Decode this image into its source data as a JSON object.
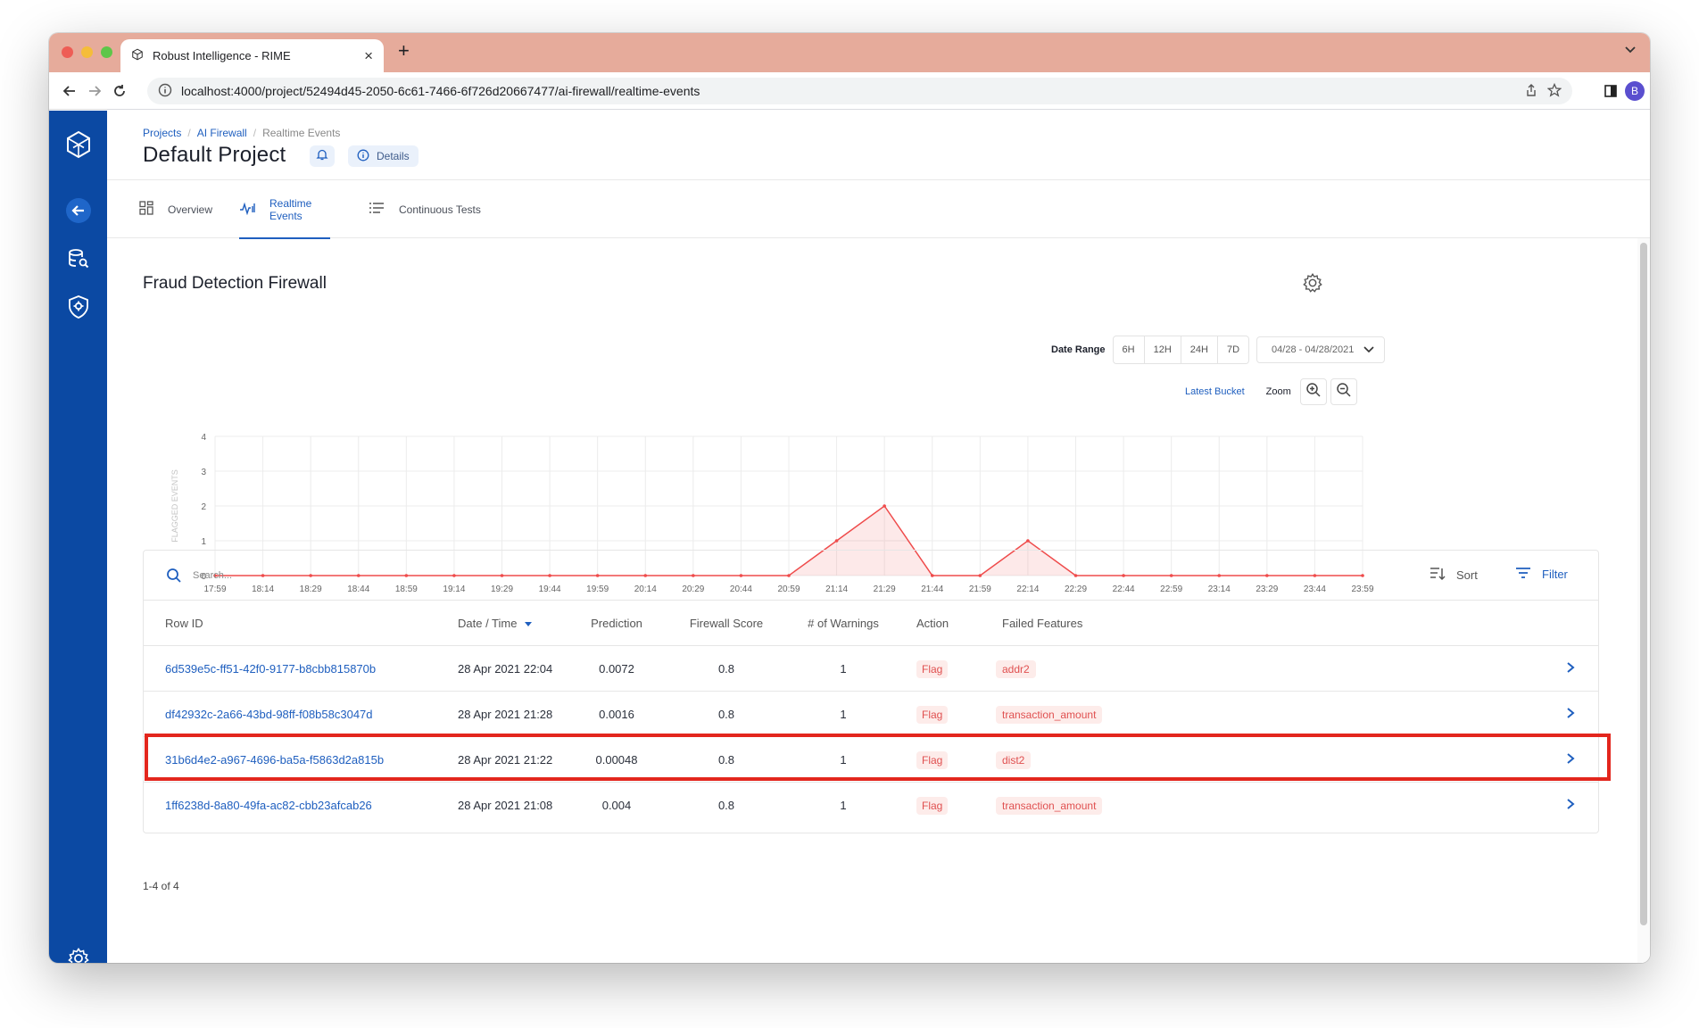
{
  "browser": {
    "tab_title": "Robust Intelligence - RIME",
    "new_tab_glyph": "+",
    "url": "localhost:4000/project/52494d45-2050-6c61-7466-6f726d20667477/ai-firewall/realtime-events",
    "profile_initial": "B",
    "traffic_lights": [
      "#ee5d55",
      "#f5bd3a",
      "#5ec649"
    ]
  },
  "sidebar": {
    "color": "#0b49a3",
    "icons": [
      "logo-icon",
      "back-arrow-icon",
      "data-search-icon",
      "shield-gear-icon",
      "settings-icon"
    ]
  },
  "breadcrumb": {
    "projects": "Projects",
    "ai_firewall": "AI Firewall",
    "current": "Realtime Events"
  },
  "header": {
    "title": "Default Project",
    "details_label": "Details"
  },
  "tabs": [
    {
      "label": "Overview",
      "icon": "grid-icon",
      "active": false
    },
    {
      "label": "Realtime Events",
      "icon": "activity-icon",
      "active": true
    },
    {
      "label": "Continuous Tests",
      "icon": "list-icon",
      "active": false
    }
  ],
  "firewall": {
    "title": "Fraud Detection Firewall"
  },
  "controls": {
    "date_range_label": "Date Range",
    "ranges": [
      "6H",
      "12H",
      "24H",
      "7D"
    ],
    "date_value": "04/28 - 04/28/2021",
    "latest_bucket": "Latest Bucket",
    "zoom_label": "Zoom"
  },
  "chart_data": {
    "type": "area",
    "ylabel": "FLAGGED EVENTS",
    "xlabel": "",
    "ylim": [
      0,
      4
    ],
    "yticks": [
      0,
      1,
      2,
      3,
      4
    ],
    "x": [
      "17:59",
      "18:14",
      "18:29",
      "18:44",
      "18:59",
      "19:14",
      "19:29",
      "19:44",
      "19:59",
      "20:14",
      "20:29",
      "20:44",
      "20:59",
      "21:14",
      "21:29",
      "21:44",
      "21:59",
      "22:14",
      "22:29",
      "22:44",
      "22:59",
      "23:14",
      "23:29",
      "23:44",
      "23:59"
    ],
    "values": [
      0,
      0,
      0,
      0,
      0,
      0,
      0,
      0,
      0,
      0,
      0,
      0,
      0,
      1,
      2,
      0,
      0,
      1,
      0,
      0,
      0,
      0,
      0,
      0,
      0
    ],
    "color": "#ef4b4b",
    "grid": true
  },
  "table": {
    "search_placeholder": "Search...",
    "sort_label": "Sort",
    "filter_label": "Filter",
    "columns": [
      "Row ID",
      "Date / Time",
      "Prediction",
      "Firewall Score",
      "# of Warnings",
      "Action",
      "Failed Features"
    ],
    "rows": [
      {
        "id": "6d539e5c-ff51-42f0-9177-b8cbb815870b",
        "datetime": "28 Apr 2021 22:04",
        "prediction": "0.0072",
        "score": "0.8",
        "warnings": "1",
        "action": "Flag",
        "feature": "addr2"
      },
      {
        "id": "df42932c-2a66-43bd-98ff-f08b58c3047d",
        "datetime": "28 Apr 2021 21:28",
        "prediction": "0.0016",
        "score": "0.8",
        "warnings": "1",
        "action": "Flag",
        "feature": "transaction_amount"
      },
      {
        "id": "31b6d4e2-a967-4696-ba5a-f5863d2a815b",
        "datetime": "28 Apr 2021 21:22",
        "prediction": "0.00048",
        "score": "0.8",
        "warnings": "1",
        "action": "Flag",
        "feature": "dist2"
      },
      {
        "id": "1ff6238d-8a80-49fa-ac82-cbb23afcab26",
        "datetime": "28 Apr 2021 21:08",
        "prediction": "0.004",
        "score": "0.8",
        "warnings": "1",
        "action": "Flag",
        "feature": "transaction_amount"
      }
    ],
    "pagination": "1-4 of 4"
  },
  "colors": {
    "accent": "#1f5fbf",
    "flag": "#e05050",
    "highlight": "#e3261d",
    "tabstrip": "#e6ab9b"
  }
}
